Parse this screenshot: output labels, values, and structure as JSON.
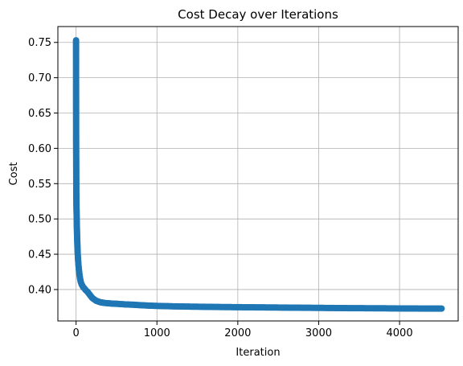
{
  "chart_data": {
    "type": "line",
    "title": "Cost Decay over Iterations",
    "xlabel": "Iteration",
    "ylabel": "Cost",
    "xlim": [
      -225,
      4725
    ],
    "ylim": [
      0.3555,
      0.7725
    ],
    "x_ticks": [
      0,
      1000,
      2000,
      3000,
      4000
    ],
    "y_ticks": [
      0.4,
      0.45,
      0.5,
      0.55,
      0.6,
      0.65,
      0.7,
      0.75
    ],
    "x_tick_labels": [
      "0",
      "1000",
      "2000",
      "3000",
      "4000"
    ],
    "y_tick_labels": [
      "0.40",
      "0.45",
      "0.50",
      "0.55",
      "0.60",
      "0.65",
      "0.70",
      "0.75"
    ],
    "grid": true,
    "marker": "circle",
    "color": "#1f77b4",
    "series": [
      {
        "x": [
          0,
          1,
          2,
          3,
          4,
          5,
          6,
          7,
          8,
          9,
          10,
          12,
          14,
          16,
          18,
          20,
          25,
          30,
          35,
          40,
          45,
          50,
          60,
          70,
          80,
          90,
          100,
          120,
          140,
          160,
          180,
          200,
          225,
          250,
          275,
          300,
          350,
          400,
          450,
          500,
          600,
          700,
          800,
          900,
          1000,
          1200,
          1400,
          1600,
          1800,
          2000,
          2200,
          2400,
          2600,
          2800,
          3000,
          3200,
          3400,
          3600,
          3800,
          4000,
          4200,
          4400,
          4520
        ],
        "y": [
          0.753,
          0.608,
          0.572,
          0.537,
          0.525,
          0.518,
          0.512,
          0.506,
          0.5,
          0.494,
          0.488,
          0.479,
          0.471,
          0.464,
          0.458,
          0.452,
          0.442,
          0.434,
          0.428,
          0.423,
          0.419,
          0.415,
          0.41,
          0.407,
          0.405,
          0.403,
          0.402,
          0.399,
          0.397,
          0.394,
          0.391,
          0.388,
          0.386,
          0.384,
          0.383,
          0.382,
          0.381,
          0.3805,
          0.38,
          0.3798,
          0.379,
          0.3785,
          0.3778,
          0.3772,
          0.3768,
          0.3762,
          0.3758,
          0.3755,
          0.3752,
          0.375,
          0.3748,
          0.3746,
          0.3744,
          0.3742,
          0.374,
          0.3738,
          0.3736,
          0.3735,
          0.3734,
          0.3732,
          0.3731,
          0.373,
          0.373
        ]
      }
    ]
  }
}
